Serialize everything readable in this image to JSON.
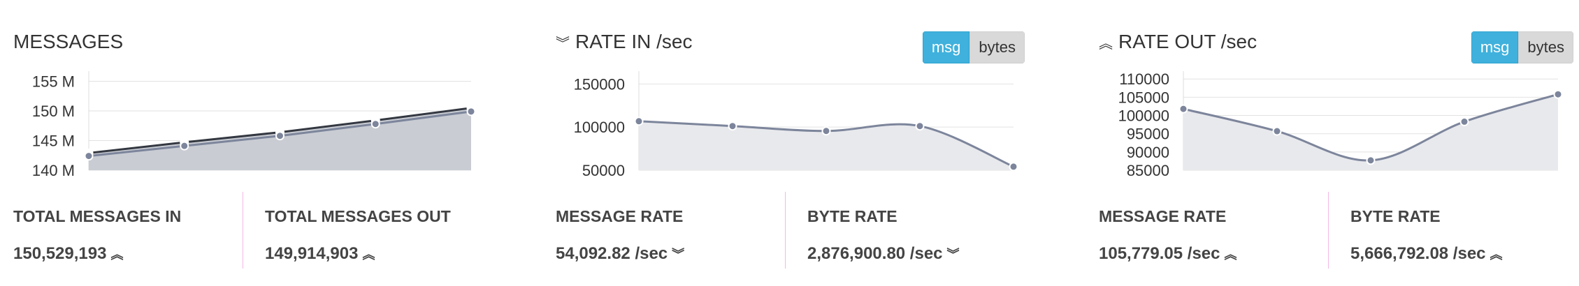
{
  "panels": {
    "messages": {
      "title": "MESSAGES",
      "stats": [
        {
          "label": "TOTAL MESSAGES IN",
          "value": "150,529,193",
          "trend_icon": "double-chevron-up-icon"
        },
        {
          "label": "TOTAL MESSAGES OUT",
          "value": "149,914,903",
          "trend_icon": "double-chevron-up-icon"
        }
      ]
    },
    "rate_in": {
      "title": "RATE IN /sec",
      "title_icon": "double-chevron-down-icon",
      "toggle": {
        "msg": "msg",
        "bytes": "bytes",
        "active": "msg"
      },
      "stats": [
        {
          "label": "MESSAGE RATE",
          "value": "54,092.82 /sec",
          "trend_icon": "double-chevron-down-icon"
        },
        {
          "label": "BYTE RATE",
          "value": "2,876,900.80 /sec",
          "trend_icon": "double-chevron-down-icon"
        }
      ]
    },
    "rate_out": {
      "title": "RATE OUT /sec",
      "title_icon": "double-chevron-up-icon",
      "toggle": {
        "msg": "msg",
        "bytes": "bytes",
        "active": "msg"
      },
      "stats": [
        {
          "label": "MESSAGE RATE",
          "value": "105,779.05 /sec",
          "trend_icon": "double-chevron-up-icon"
        },
        {
          "label": "BYTE RATE",
          "value": "5,666,792.08 /sec",
          "trend_icon": "double-chevron-up-icon"
        }
      ]
    }
  },
  "colors": {
    "toggle_active": "#3fb1dc",
    "toggle_inactive": "#d9d9d9",
    "series_in": "#343841",
    "series_out": "#7c859b",
    "area_fill": "#c9ccd3",
    "area_fill_light": "#e8e9ed",
    "divider": "#f3b8e6"
  },
  "chart_data": [
    {
      "type": "area",
      "chart": "messages",
      "yticks": [
        "155 M",
        "150 M",
        "145 M",
        "140 M"
      ],
      "ytick_values": [
        155000000,
        150000000,
        145000000,
        140000000
      ],
      "ylim": [
        140000000,
        156000000
      ],
      "x": [
        0,
        1,
        2,
        3,
        4
      ],
      "series": [
        {
          "values": [
            142900000,
            144700000,
            146400000,
            148400000,
            150500000
          ]
        },
        {
          "values": [
            142400000,
            144100000,
            145800000,
            147800000,
            149900000
          ]
        }
      ],
      "grid": true
    },
    {
      "type": "area",
      "chart": "rate_in",
      "yticks": [
        "150000",
        "100000",
        "50000"
      ],
      "ytick_values": [
        150000,
        100000,
        50000
      ],
      "ylim": [
        50000,
        160000
      ],
      "x": [
        0,
        1,
        2,
        3,
        4
      ],
      "series": [
        {
          "values": [
            106800,
            101200,
            95500,
            101200,
            54100
          ]
        }
      ],
      "grid": true
    },
    {
      "type": "area",
      "chart": "rate_out",
      "yticks": [
        "110000",
        "105000",
        "100000",
        "95000",
        "90000",
        "85000"
      ],
      "ytick_values": [
        110000,
        105000,
        100000,
        95000,
        90000,
        85000
      ],
      "ylim": [
        85000,
        111000
      ],
      "x": [
        0,
        1,
        2,
        3,
        4
      ],
      "series": [
        {
          "values": [
            101800,
            95700,
            87700,
            98300,
            105800
          ]
        }
      ],
      "grid": true
    }
  ]
}
